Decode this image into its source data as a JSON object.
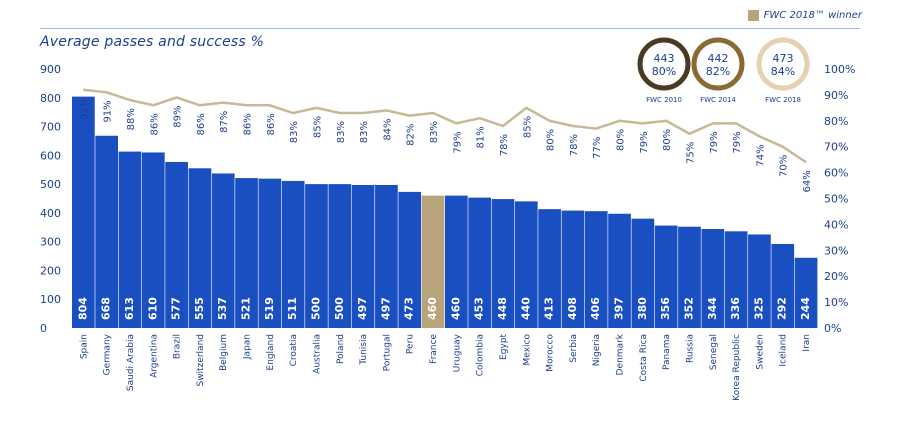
{
  "title": "Average passes and success %",
  "legend": {
    "label": "FWC 2018™ winner",
    "color": "#b7a47a"
  },
  "badges": [
    {
      "passes": "443",
      "success": "80%",
      "label": "FWC 2010",
      "ring_color": "#4a3a22"
    },
    {
      "passes": "442",
      "success": "82%",
      "label": "FWC 2014",
      "ring_color": "#8a6a32"
    },
    {
      "passes": "473",
      "success": "84%",
      "label": "FWC 2018",
      "ring_color": "#e3d2ad"
    }
  ],
  "colors": {
    "bar": "#1a4fc2",
    "highlight": "#b7a47a",
    "line": "#c7b995",
    "text": "#1d3f8f"
  },
  "chart_data": {
    "type": "bar",
    "title": "Average passes and success %",
    "categories": [
      "Spain",
      "Germany",
      "Saudi Arabia",
      "Argentina",
      "Brazil",
      "Switzerland",
      "Belgium",
      "Japan",
      "England",
      "Croatia",
      "Australia",
      "Poland",
      "Tunisia",
      "Portugal",
      "Peru",
      "France",
      "Uruguay",
      "Colombia",
      "Egypt",
      "Mexico",
      "Morocco",
      "Serbia",
      "Nigeria",
      "Denmark",
      "Costa Rica",
      "Panama",
      "Russia",
      "Senegal",
      "Korea Republic",
      "Sweden",
      "Iceland",
      "Iran"
    ],
    "series": [
      {
        "name": "Average passes",
        "type": "bar",
        "axis": "left",
        "values": [
          804,
          668,
          613,
          610,
          577,
          555,
          537,
          521,
          519,
          511,
          500,
          500,
          497,
          497,
          473,
          460,
          460,
          453,
          448,
          440,
          413,
          408,
          406,
          397,
          380,
          356,
          352,
          344,
          336,
          325,
          292,
          244
        ]
      },
      {
        "name": "Success %",
        "type": "line",
        "axis": "right",
        "values": [
          92,
          91,
          88,
          86,
          89,
          86,
          87,
          86,
          86,
          83,
          85,
          83,
          83,
          84,
          82,
          83,
          79,
          81,
          78,
          85,
          80,
          78,
          77,
          80,
          79,
          80,
          75,
          79,
          79,
          74,
          70,
          64
        ]
      }
    ],
    "highlight_category": "France",
    "y_left": {
      "range": [
        0,
        900
      ],
      "ticks": [
        "0",
        "100",
        "200",
        "300",
        "400",
        "500",
        "600",
        "700",
        "800",
        "900"
      ]
    },
    "y_right": {
      "range": [
        0,
        100
      ],
      "ticks": [
        "0%",
        "10%",
        "20%",
        "30%",
        "40%",
        "50%",
        "60%",
        "70%",
        "80%",
        "90%",
        "100%"
      ]
    },
    "grid": false,
    "legend_position": "top-right"
  }
}
